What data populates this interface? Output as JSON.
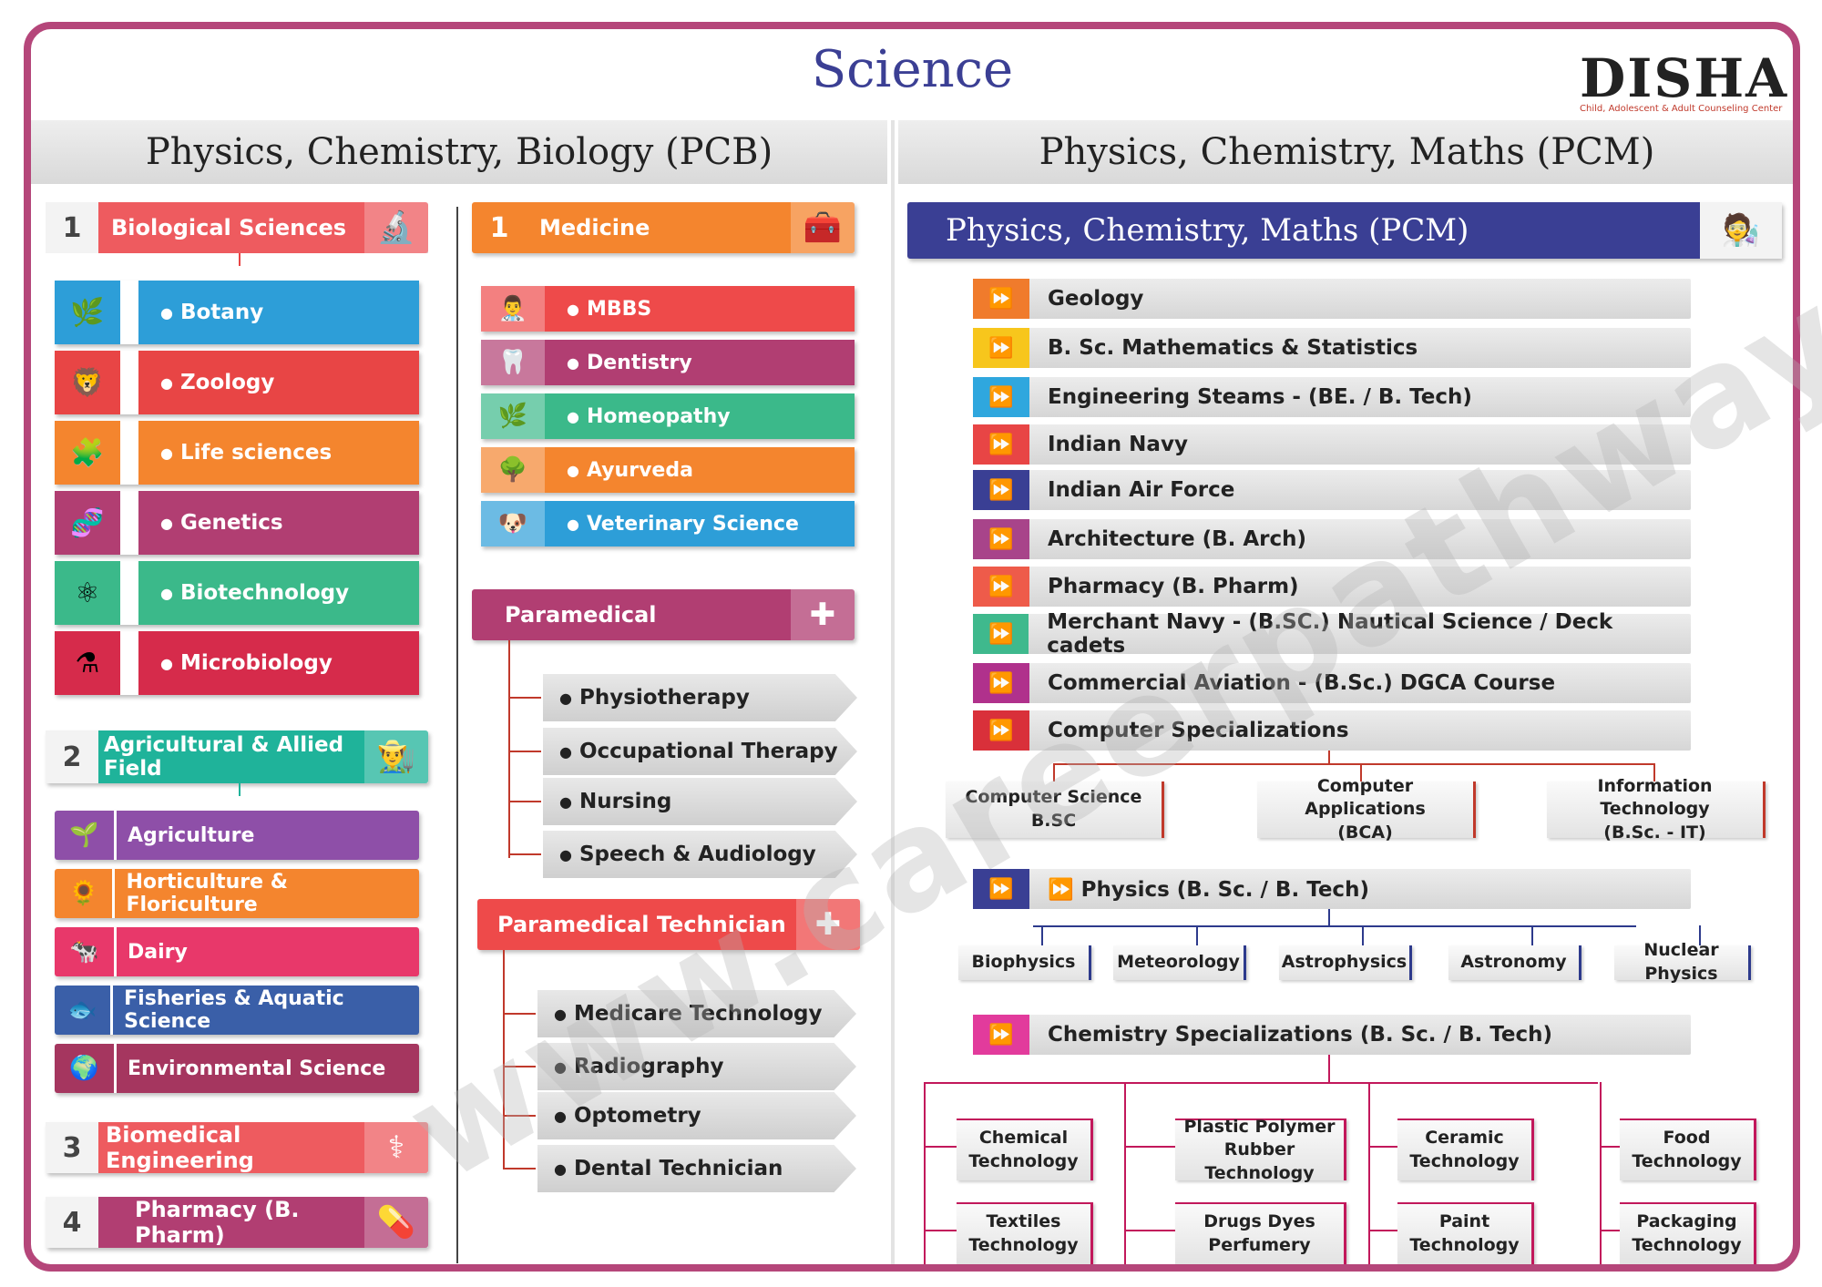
{
  "title": "Science",
  "logo": {
    "name": "DISHA",
    "tagline": "Child, Adolescent & Adult Counseling Center"
  },
  "watermark": "www.careerpathways.co.in",
  "pcb": {
    "header": "Physics, Chemistry, Biology (PCB)",
    "bio": {
      "num": "1",
      "label": "Biological Sciences",
      "items": [
        "Botany",
        "Zoology",
        "Life sciences",
        "Genetics",
        "Biotechnology",
        "Microbiology"
      ]
    },
    "agri": {
      "num": "2",
      "label": "Agricultural & Allied Field",
      "items": [
        "Agriculture",
        "Horticulture & Floriculture",
        "Dairy",
        "Fisheries & Aquatic Science",
        "Environmental Science"
      ]
    },
    "biomed": {
      "num": "3",
      "label": "Biomedical Engineering"
    },
    "pharm": {
      "num": "4",
      "label": "Pharmacy (B. Pharm)"
    },
    "medicine": {
      "num": "1",
      "label": "Medicine",
      "items": [
        "MBBS",
        "Dentistry",
        "Homeopathy",
        "Ayurveda",
        "Veterinary Science"
      ]
    },
    "paramedical": {
      "label": "Paramedical",
      "items": [
        "Physiotherapy",
        "Occupational Therapy",
        "Nursing",
        "Speech & Audiology"
      ]
    },
    "paratech": {
      "label": "Paramedical Technician",
      "items": [
        "Medicare Technology",
        "Radiography",
        "Optometry",
        "Dental Technician"
      ]
    }
  },
  "pcm": {
    "header": "Physics, Chemistry, Maths (PCM)",
    "banner": "Physics, Chemistry, Maths (PCM)",
    "rows": [
      {
        "label": "Geology",
        "color": "#f07b2c"
      },
      {
        "label": "B. Sc. Mathematics & Statistics",
        "color": "#f7c61c"
      },
      {
        "label": "Engineering Steams - (BE. / B. Tech)",
        "color": "#2fa7de"
      },
      {
        "label": "Indian Navy",
        "color": "#e84545"
      },
      {
        "label": "Indian Air Force",
        "color": "#3a3f94"
      },
      {
        "label": "Architecture (B. Arch)",
        "color": "#a8448a"
      },
      {
        "label": "Pharmacy (B. Pharm)",
        "color": "#ee5b4a"
      },
      {
        "label": "Merchant Navy - (B.SC.) Nautical Science / Deck cadets",
        "color": "#3fb98d"
      },
      {
        "label": "Commercial Aviation - (B.Sc.) DGCA Course",
        "color": "#b0318c"
      },
      {
        "label": "Computer Specializations",
        "color": "#d9303a"
      }
    ],
    "computer": [
      "Computer Science\nB.SC",
      "Computer Applications\n(BCA)",
      "Information Technology\n(B.Sc. - IT)"
    ],
    "physics": {
      "label": "Physics (B. Sc. / B. Tech)",
      "items": [
        "Biophysics",
        "Meteorology",
        "Astrophysics",
        "Astronomy",
        "Nuclear Physics"
      ]
    },
    "chemistry": {
      "label": "Chemistry Specializations  (B. Sc. / B. Tech)",
      "items": [
        "Chemical\nTechnology",
        "Plastic Polymer\nRubber Technology",
        "Ceramic\nTechnology",
        "Food\nTechnology",
        "Textiles\nTechnology",
        "Drugs Dyes\nPerfumery",
        "Paint\nTechnology",
        "Packaging\nTechnology"
      ]
    }
  },
  "colors": {
    "frame": "#b5467a",
    "title": "#3b3f94",
    "botany": "#2d9ed8",
    "zoology": "#e84545",
    "life": "#f4852e",
    "genetics": "#b13e72",
    "biotech": "#3bb98a",
    "micro": "#d62b4b"
  }
}
